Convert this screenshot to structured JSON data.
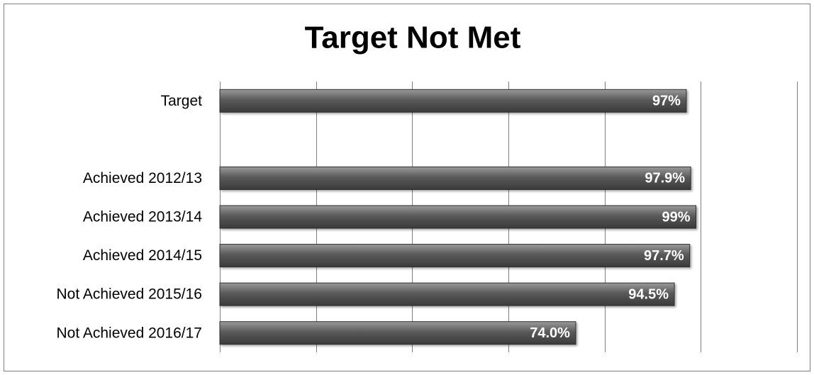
{
  "chart_data": {
    "type": "bar",
    "orientation": "horizontal",
    "title": "Target Not Met",
    "categories": [
      "Target",
      null,
      "Achieved 2012/13",
      "Achieved 2013/14",
      "Achieved 2014/15",
      "Not Achieved 2015/16",
      "Not Achieved 2016/17"
    ],
    "values": [
      97,
      null,
      97.9,
      99,
      97.7,
      94.5,
      74.0
    ],
    "value_labels": [
      "97%",
      null,
      "97.9%",
      "99%",
      "97.7%",
      "94.5%",
      "74.0%"
    ],
    "color": "#5a5a5a",
    "xlim": [
      0,
      120
    ],
    "xticks": [
      0,
      20,
      40,
      60,
      80,
      100,
      120
    ],
    "grid": true
  }
}
